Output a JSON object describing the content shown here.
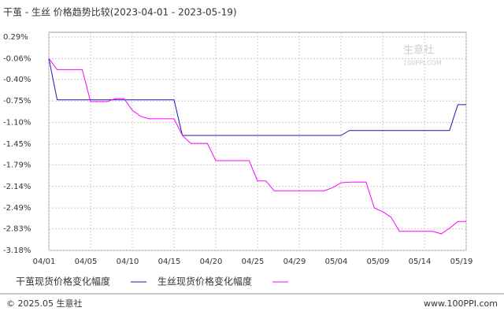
{
  "chart_data": {
    "type": "line",
    "title": "干茧 - 生丝 价格趋势比较(2023-04-01 - 2023-05-19)",
    "categories": [
      "04/01",
      null,
      null,
      null,
      null,
      "04/05",
      null,
      null,
      null,
      null,
      "04/10",
      null,
      null,
      null,
      null,
      "04/15",
      null,
      null,
      null,
      null,
      "04/20",
      null,
      null,
      null,
      null,
      "04/25",
      null,
      null,
      null,
      null,
      "04/29",
      null,
      null,
      null,
      null,
      "05/04",
      null,
      null,
      null,
      null,
      "05/09",
      null,
      null,
      null,
      null,
      "05/14",
      null,
      null,
      null,
      null,
      "05/19"
    ],
    "series": [
      {
        "name": "干茧现货价格变化幅度",
        "color": "#1a1aa6",
        "values": [
          -0.06,
          -0.73,
          -0.73,
          -0.73,
          -0.73,
          -0.73,
          -0.73,
          -0.73,
          -0.73,
          -0.73,
          -0.73,
          -0.73,
          -0.73,
          -0.73,
          -0.73,
          -0.73,
          -1.31,
          -1.31,
          -1.31,
          -1.31,
          -1.31,
          -1.31,
          -1.31,
          -1.31,
          -1.31,
          -1.31,
          -1.31,
          -1.31,
          -1.31,
          -1.31,
          -1.31,
          -1.31,
          -1.31,
          -1.31,
          -1.31,
          -1.31,
          -1.23,
          -1.23,
          -1.23,
          -1.23,
          -1.23,
          -1.23,
          -1.23,
          -1.23,
          -1.23,
          -1.23,
          -1.23,
          -1.23,
          -1.23,
          -0.81,
          -0.81
        ]
      },
      {
        "name": "生丝现货价格变化幅度",
        "color": "#ff00ff",
        "values": [
          -0.06,
          -0.24,
          -0.24,
          -0.24,
          -0.24,
          -0.76,
          -0.76,
          -0.76,
          -0.71,
          -0.71,
          -0.9,
          -1.0,
          -1.04,
          -1.04,
          -1.04,
          -1.04,
          -1.31,
          -1.44,
          -1.44,
          -1.44,
          -1.72,
          -1.72,
          -1.72,
          -1.72,
          -1.72,
          -2.05,
          -2.05,
          -2.21,
          -2.21,
          -2.21,
          -2.21,
          -2.21,
          -2.21,
          -2.21,
          -2.16,
          -2.08,
          -2.07,
          -2.07,
          -2.07,
          -2.49,
          -2.55,
          -2.64,
          -2.87,
          -2.87,
          -2.87,
          -2.87,
          -2.87,
          -2.91,
          -2.82,
          -2.71,
          -2.71
        ]
      }
    ],
    "ylim": [
      -3.18,
      0.29
    ],
    "yticks": [
      {
        "value": 0.29,
        "label": "0.29%"
      },
      {
        "value": -0.06,
        "label": "-0.06%"
      },
      {
        "value": -0.4,
        "label": "-0.40%"
      },
      {
        "value": -0.75,
        "label": "-0.75%"
      },
      {
        "value": -1.1,
        "label": "-1.10%"
      },
      {
        "value": -1.45,
        "label": "-1.45%"
      },
      {
        "value": -1.79,
        "label": "-1.79%"
      },
      {
        "value": -2.14,
        "label": "-2.14%"
      },
      {
        "value": -2.49,
        "label": "-2.49%"
      },
      {
        "value": -2.83,
        "label": "-2.83%"
      },
      {
        "value": -3.18,
        "label": "-3.18%"
      }
    ],
    "grid": true,
    "watermark": [
      "生意社",
      "100PPI.COM"
    ],
    "footer_left": "© 2025.05 生意社",
    "footer_right": "www.100PPI.com"
  }
}
